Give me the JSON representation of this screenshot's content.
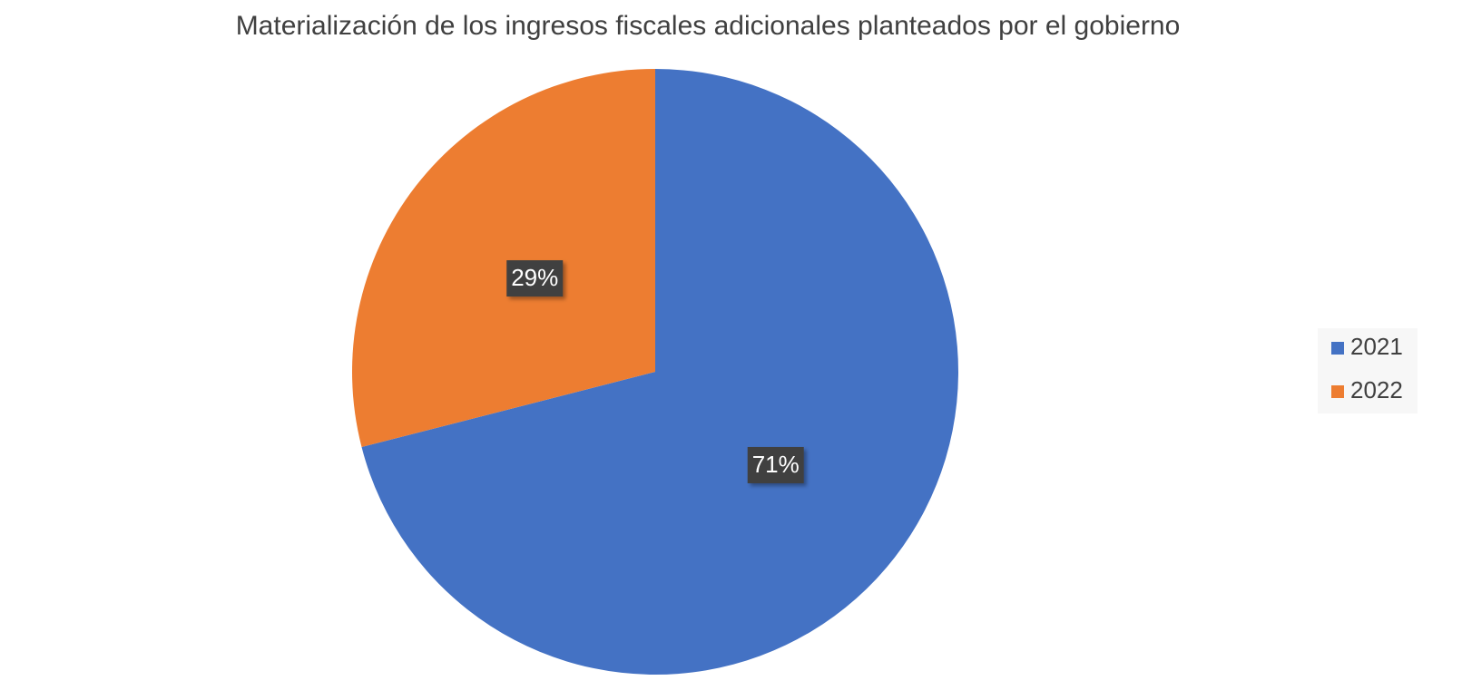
{
  "chart_data": {
    "type": "pie",
    "title": "Materialización de los ingresos fiscales adicionales planteados por el gobierno",
    "categories": [
      "2021",
      "2022"
    ],
    "values": [
      71,
      29
    ],
    "value_labels": [
      "71%",
      "29%"
    ],
    "colors": [
      "#4472c4",
      "#ed7d31"
    ],
    "legend": "right"
  }
}
